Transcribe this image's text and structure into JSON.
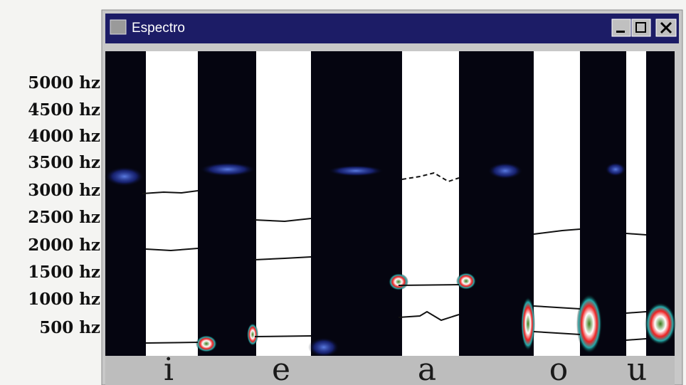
{
  "window": {
    "title": "Espectro"
  },
  "axis_labels": [
    "5000 hz",
    "4500 hz",
    "4000 hz",
    "3500 hz",
    "3000 hz",
    "2500 hz",
    "2000 hz",
    "1500 hz",
    "1000 hz",
    "500 hz"
  ],
  "vowels": [
    "i",
    "e",
    "a",
    "o",
    "u"
  ]
}
